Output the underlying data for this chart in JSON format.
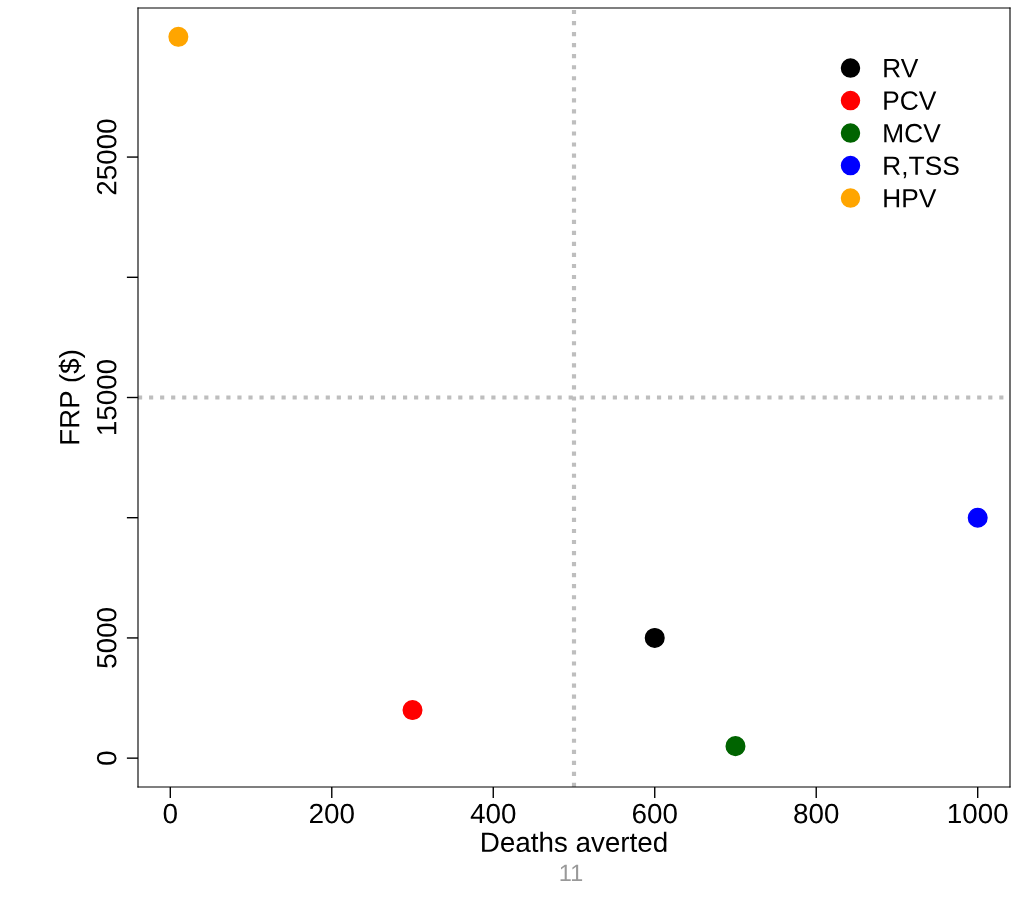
{
  "chart_data": {
    "type": "scatter",
    "xlabel": "Deaths averted",
    "ylabel": "FRP ($)",
    "series": [
      {
        "name": "RV",
        "color": "#000000",
        "x": [
          600
        ],
        "values": [
          5000
        ]
      },
      {
        "name": "PCV",
        "color": "#ff0000",
        "x": [
          300
        ],
        "values": [
          2000
        ]
      },
      {
        "name": "MCV",
        "color": "#006400",
        "x": [
          700
        ],
        "values": [
          500
        ]
      },
      {
        "name": "R,TSS",
        "color": "#0000ff",
        "x": [
          1000
        ],
        "values": [
          10000
        ]
      },
      {
        "name": "HPV",
        "color": "#ffa500",
        "x": [
          10
        ],
        "values": [
          30000
        ]
      }
    ],
    "xlim": [
      -40,
      1040
    ],
    "ylim": [
      -1200,
      31200
    ],
    "xticks": [
      0,
      200,
      400,
      600,
      800,
      1000
    ],
    "yticks": [
      0,
      5000,
      {
        "value": 10000,
        "label": null
      },
      15000,
      {
        "value": 20000,
        "label": null
      },
      25000
    ],
    "ref_lines": [
      {
        "axis": "x",
        "value": 500,
        "color": "#bebebe",
        "line_style": "dotted"
      },
      {
        "axis": "y",
        "value": 15000,
        "color": "#bebebe",
        "line_style": "dotted"
      }
    ],
    "marker": "circle",
    "legend": "top right",
    "grid": false,
    "annotations": [
      "11"
    ]
  }
}
